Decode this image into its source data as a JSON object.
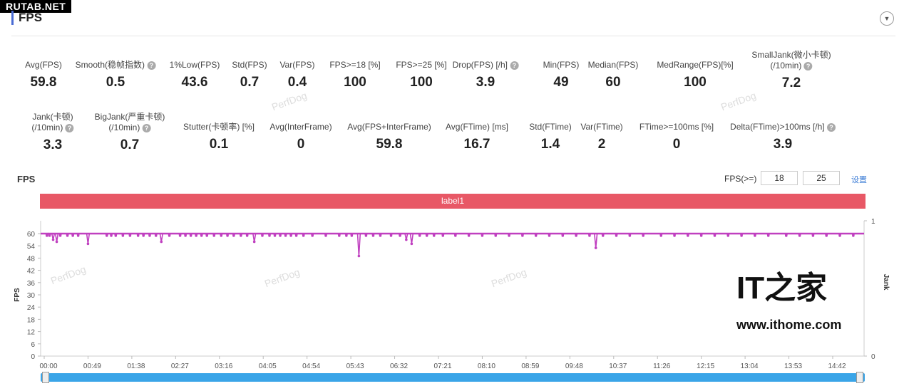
{
  "watermark_logo": "RUTAB.NET",
  "section_title": "FPS",
  "metrics_row1": [
    {
      "label": "Avg(FPS)",
      "value": "59.8",
      "help": false
    },
    {
      "label": "Smooth(稳帧指数)",
      "value": "0.5",
      "help": true
    },
    {
      "label": "1%Low(FPS)",
      "value": "43.6",
      "help": false
    },
    {
      "label": "Std(FPS)",
      "value": "0.7",
      "help": false
    },
    {
      "label": "Var(FPS)",
      "value": "0.4",
      "help": false
    },
    {
      "label": "FPS>=18 [%]",
      "value": "100",
      "help": false
    },
    {
      "label": "FPS>=25 [%]",
      "value": "100",
      "help": false
    },
    {
      "label": "Drop(FPS) [/h]",
      "value": "3.9",
      "help": true
    },
    {
      "label": "Min(FPS)",
      "value": "49",
      "help": false
    },
    {
      "label": "Median(FPS)",
      "value": "60",
      "help": false
    },
    {
      "label": "MedRange(FPS)[%]",
      "value": "100",
      "help": false
    },
    {
      "label": "SmallJank(微小卡顿)",
      "label2": "(/10min)",
      "value": "7.2",
      "help": true
    }
  ],
  "metrics_row2": [
    {
      "label": "Jank(卡顿)",
      "label2": "(/10min)",
      "value": "3.3",
      "help": true
    },
    {
      "label": "BigJank(严重卡顿)",
      "label2": "(/10min)",
      "value": "0.7",
      "help": true
    },
    {
      "label": "Stutter(卡顿率) [%]",
      "value": "0.1",
      "help": false
    },
    {
      "label": "Avg(InterFrame)",
      "value": "0",
      "help": false
    },
    {
      "label": "Avg(FPS+InterFrame)",
      "value": "59.8",
      "help": false
    },
    {
      "label": "Avg(FTime) [ms]",
      "value": "16.7",
      "help": false
    },
    {
      "label": "Std(FTime)",
      "value": "1.4",
      "help": false
    },
    {
      "label": "Var(FTime)",
      "value": "2",
      "help": false
    },
    {
      "label": "FTime>=100ms [%]",
      "value": "0",
      "help": false
    },
    {
      "label": "Delta(FTime)>100ms [/h]",
      "value": "3.9",
      "help": true
    }
  ],
  "chart_header": {
    "title": "FPS",
    "threshold_label": "FPS(>=)",
    "threshold1": "18",
    "threshold2": "25",
    "set_link": "设置"
  },
  "label_band": "label1",
  "watermark_text": "PerfDog",
  "ithome": {
    "logo": "IT之家",
    "url": "www.ithome.com"
  },
  "chart_data": {
    "type": "line",
    "ylabel": "FPS",
    "y2label": "Jank",
    "ylim": [
      0,
      60
    ],
    "yticks": [
      "0",
      "6",
      "12",
      "18",
      "24",
      "30",
      "36",
      "42",
      "48",
      "54",
      "60"
    ],
    "y2lim": [
      0,
      1
    ],
    "y2ticks": [
      "0",
      "1"
    ],
    "xlim_seconds": [
      0,
      917
    ],
    "xticks": [
      "00:00",
      "00:49",
      "01:38",
      "02:27",
      "03:16",
      "04:05",
      "04:54",
      "05:43",
      "06:32",
      "07:21",
      "08:10",
      "08:59",
      "09:48",
      "10:37",
      "11:26",
      "12:15",
      "13:04",
      "13:53",
      "14:42"
    ],
    "color": "#c040c0",
    "baseline_fps": 60,
    "points_seconds_fps": [
      [
        3,
        59
      ],
      [
        6,
        59
      ],
      [
        10,
        57
      ],
      [
        14,
        56
      ],
      [
        18,
        59
      ],
      [
        26,
        59
      ],
      [
        32,
        59
      ],
      [
        38,
        59
      ],
      [
        49,
        55
      ],
      [
        70,
        59
      ],
      [
        75,
        59
      ],
      [
        80,
        59
      ],
      [
        88,
        59
      ],
      [
        96,
        59
      ],
      [
        105,
        59
      ],
      [
        111,
        59
      ],
      [
        118,
        59
      ],
      [
        125,
        59
      ],
      [
        131,
        56
      ],
      [
        140,
        59
      ],
      [
        152,
        59
      ],
      [
        158,
        59
      ],
      [
        164,
        59
      ],
      [
        170,
        59
      ],
      [
        176,
        59
      ],
      [
        182,
        59
      ],
      [
        190,
        59
      ],
      [
        198,
        59
      ],
      [
        205,
        59
      ],
      [
        212,
        59
      ],
      [
        220,
        59
      ],
      [
        227,
        59
      ],
      [
        235,
        56
      ],
      [
        244,
        59
      ],
      [
        252,
        59
      ],
      [
        258,
        59
      ],
      [
        264,
        59
      ],
      [
        270,
        59
      ],
      [
        276,
        59
      ],
      [
        282,
        59
      ],
      [
        290,
        59
      ],
      [
        300,
        59
      ],
      [
        315,
        59
      ],
      [
        330,
        59
      ],
      [
        338,
        59
      ],
      [
        344,
        59
      ],
      [
        352,
        49
      ],
      [
        360,
        59
      ],
      [
        368,
        59
      ],
      [
        376,
        59
      ],
      [
        388,
        59
      ],
      [
        398,
        59
      ],
      [
        405,
        57
      ],
      [
        411,
        55
      ],
      [
        420,
        59
      ],
      [
        428,
        59
      ],
      [
        436,
        59
      ],
      [
        446,
        59
      ],
      [
        460,
        59
      ],
      [
        475,
        59
      ],
      [
        490,
        59
      ],
      [
        505,
        59
      ],
      [
        520,
        59
      ],
      [
        535,
        59
      ],
      [
        550,
        59
      ],
      [
        565,
        59
      ],
      [
        580,
        59
      ],
      [
        595,
        59
      ],
      [
        610,
        59
      ],
      [
        617,
        53
      ],
      [
        625,
        59
      ],
      [
        640,
        59
      ],
      [
        655,
        59
      ],
      [
        670,
        59
      ],
      [
        690,
        59
      ],
      [
        705,
        59
      ],
      [
        720,
        59
      ],
      [
        735,
        59
      ],
      [
        750,
        59
      ],
      [
        765,
        59
      ],
      [
        780,
        59
      ],
      [
        795,
        59
      ],
      [
        810,
        59
      ],
      [
        830,
        59
      ],
      [
        845,
        59
      ],
      [
        860,
        59
      ],
      [
        875,
        59
      ],
      [
        890,
        59
      ],
      [
        905,
        59
      ]
    ]
  }
}
